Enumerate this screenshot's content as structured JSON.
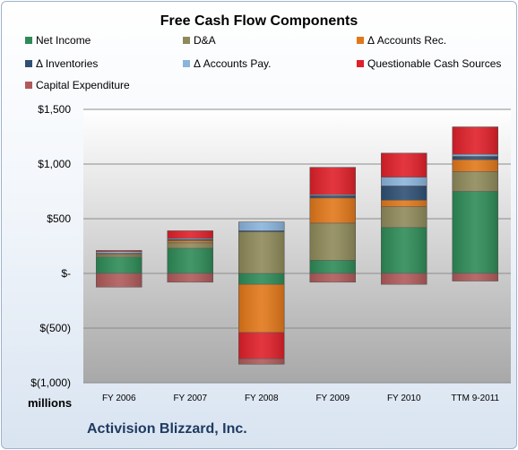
{
  "chart_data": {
    "type": "bar",
    "stacked": true,
    "title": "Free Cash Flow Components",
    "company": "Activision Blizzard, Inc.",
    "units_label": "millions",
    "categories": [
      "FY 2006",
      "FY 2007",
      "FY 2008",
      "FY 2009",
      "FY 2010",
      "TTM 9-2011"
    ],
    "ylim": [
      -1000,
      1500
    ],
    "yticks": [
      -1000,
      -500,
      0,
      500,
      1000,
      1500
    ],
    "ytick_labels": [
      "$(1,000)",
      "$(500)",
      "$-",
      "$500",
      "$1,000",
      "$1,500"
    ],
    "grid": true,
    "legend_position": "top",
    "series": [
      {
        "name": "Net Income",
        "color": "#2e8b57",
        "values": [
          150,
          230,
          -100,
          120,
          420,
          750
        ]
      },
      {
        "name": "D&A",
        "color": "#8f8a5a",
        "values": [
          20,
          50,
          380,
          340,
          190,
          180
        ]
      },
      {
        "name": "Δ Accounts Rec.",
        "color": "#e2781a",
        "values": [
          10,
          20,
          -440,
          230,
          60,
          110
        ]
      },
      {
        "name": "Δ Inventories",
        "color": "#2f4f74",
        "values": [
          5,
          10,
          10,
          20,
          130,
          30
        ]
      },
      {
        "name": "Δ Accounts Pay.",
        "color": "#8ab4dc",
        "values": [
          15,
          10,
          80,
          10,
          80,
          20
        ]
      },
      {
        "name": "Questionable Cash Sources",
        "color": "#e0202a",
        "values": [
          10,
          70,
          -240,
          250,
          220,
          250
        ]
      },
      {
        "name": "Capital Expenditure",
        "color": "#b05a5a",
        "values": [
          -125,
          -80,
          -50,
          -80,
          -100,
          -70
        ]
      }
    ]
  }
}
